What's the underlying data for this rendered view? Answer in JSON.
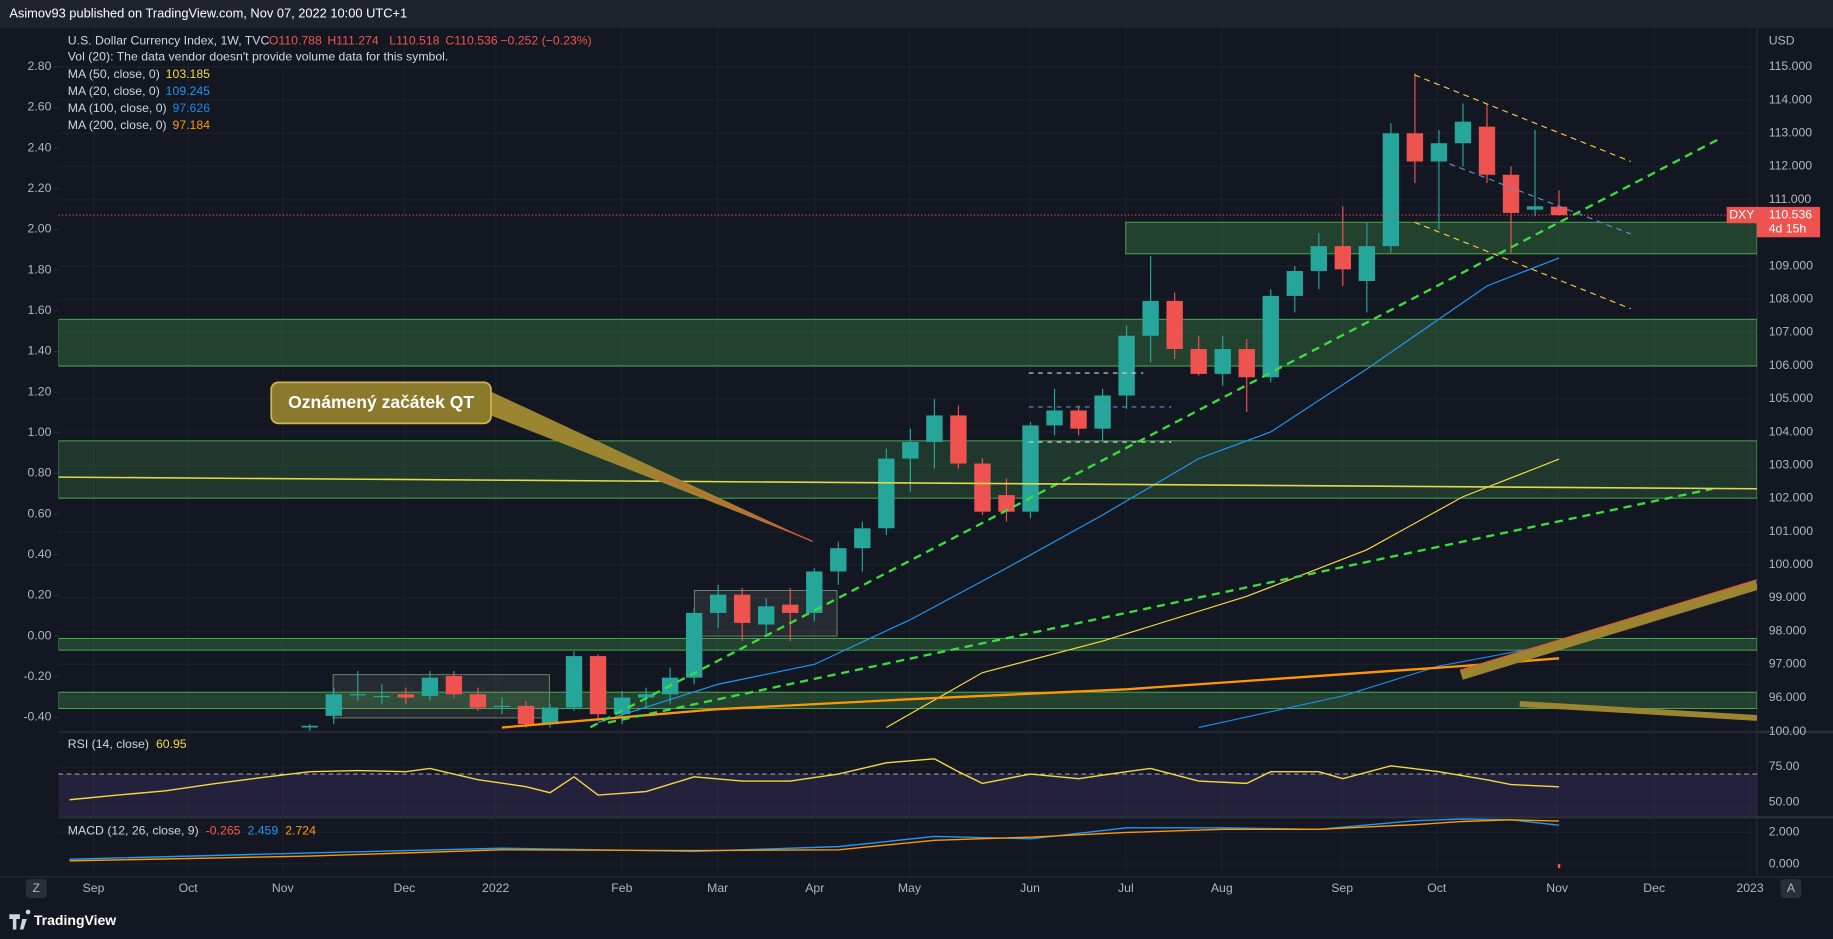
{
  "header": {
    "publisher": "Asimov93 published on TradingView.com, Nov 07, 2022 10:00 UTC+1"
  },
  "chart_data": [
    {
      "type": "candlestick",
      "title": "U.S. Dollar Currency Index, 1W, TVC",
      "ohlc_labels": [
        "O110.788",
        "H111.274",
        "L110.518",
        "C110.536",
        "−0.252 (−0.23%)"
      ],
      "subtitle": "Vol (20): The data vendor doesn't provide volume data for this symbol.",
      "symbol": "DXY",
      "countdown": "4d 15h",
      "currency": "USD",
      "annotation": "Oznámený začátek QT",
      "up_color": "#26a69a",
      "down_color": "#ef5350",
      "open": [
        95.1,
        95.45,
        96.1,
        96.05,
        96.1,
        96.05,
        96.65,
        96.1,
        95.75,
        95.75,
        95.2,
        95.7,
        97.25,
        95.5,
        96.0,
        96.1,
        96.6,
        98.55,
        99.1,
        98.2,
        98.8,
        98.55,
        99.8,
        100.5,
        101.1,
        103.2,
        103.7,
        104.5,
        103.05,
        102.1,
        101.6,
        104.2,
        104.65,
        104.1,
        105.1,
        106.9,
        107.95,
        106.5,
        105.75,
        106.5,
        105.65,
        108.1,
        108.85,
        109.6,
        108.55,
        109.6,
        113.0,
        112.15,
        112.7,
        113.2,
        111.75,
        110.7,
        110.788
      ],
      "high": [
        95.2,
        96.3,
        96.8,
        96.4,
        96.3,
        96.8,
        96.8,
        96.3,
        96.0,
        95.9,
        95.8,
        97.4,
        97.3,
        96.2,
        96.3,
        96.9,
        98.7,
        99.4,
        99.3,
        99.0,
        99.3,
        99.9,
        100.7,
        101.3,
        103.5,
        104.1,
        105.0,
        104.8,
        103.2,
        102.6,
        104.3,
        105.3,
        104.8,
        105.3,
        107.2,
        109.3,
        108.2,
        106.9,
        106.9,
        106.8,
        108.3,
        109.0,
        110.0,
        110.8,
        110.3,
        113.3,
        114.8,
        113.1,
        113.9,
        113.9,
        112.0,
        113.1,
        111.274
      ],
      "low": [
        95.0,
        95.2,
        95.9,
        95.8,
        95.8,
        95.9,
        96.0,
        95.6,
        95.5,
        95.1,
        95.1,
        95.6,
        95.3,
        95.2,
        95.7,
        95.8,
        96.4,
        98.1,
        97.7,
        97.9,
        97.7,
        98.3,
        99.4,
        99.8,
        100.9,
        102.2,
        102.9,
        102.9,
        101.5,
        101.3,
        101.4,
        103.9,
        103.9,
        103.7,
        104.7,
        106.1,
        106.2,
        105.7,
        105.4,
        104.6,
        105.5,
        107.6,
        108.3,
        108.4,
        107.6,
        109.4,
        111.5,
        110.1,
        112.0,
        111.5,
        109.4,
        110.5,
        110.518
      ],
      "close": [
        95.15,
        96.1,
        96.1,
        96.05,
        96.0,
        96.6,
        96.1,
        95.7,
        95.75,
        95.2,
        95.7,
        97.25,
        95.5,
        96.0,
        96.1,
        96.6,
        98.55,
        99.1,
        98.25,
        98.75,
        98.55,
        99.8,
        100.5,
        101.1,
        103.2,
        103.7,
        104.5,
        103.05,
        101.6,
        101.6,
        104.2,
        104.65,
        104.1,
        105.1,
        106.9,
        107.95,
        106.5,
        105.75,
        106.5,
        105.65,
        108.1,
        108.85,
        109.6,
        108.9,
        109.6,
        113.0,
        112.15,
        112.7,
        113.35,
        111.75,
        110.6,
        110.8,
        110.536
      ],
      "last_price": 110.536,
      "series": [
        {
          "name": "MA (50, close, 0)",
          "color": "#f5d742",
          "x": [
            24,
            28,
            33,
            39,
            44,
            48,
            52
          ],
          "values": [
            95.1,
            96.75,
            97.7,
            99.05,
            100.45,
            102.05,
            103.185
          ]
        },
        {
          "name": "MA (20, close, 0)",
          "color": "#2196f3",
          "x": [
            12,
            17,
            21,
            25,
            29,
            33,
            37,
            40,
            44,
            47,
            49,
            52
          ],
          "values": [
            95.25,
            96.4,
            97.0,
            98.35,
            99.9,
            101.5,
            103.2,
            104.0,
            105.9,
            107.4,
            108.4,
            109.245
          ]
        },
        {
          "name": "MA (100, close, 0)",
          "color": "#1e88e5",
          "x": [
            37,
            43,
            47,
            52
          ],
          "values": [
            95.1,
            96.05,
            96.95,
            97.626
          ]
        },
        {
          "name": "MA (200, close, 0)",
          "color": "#ff9800",
          "x": [
            8,
            17,
            25,
            34,
            42,
            48,
            52
          ],
          "values": [
            95.1,
            95.65,
            95.95,
            96.25,
            96.65,
            96.95,
            97.184
          ]
        }
      ],
      "xlim": [
        -10.46,
        60.24
      ],
      "xticks": [
        {
          "value": -9.0,
          "label": "Sep"
        },
        {
          "value": -5.06,
          "label": "Oct"
        },
        {
          "value": -1.12,
          "label": "Nov"
        },
        {
          "value": 3.94,
          "label": "Dec"
        },
        {
          "value": 7.74,
          "label": "2022"
        },
        {
          "value": 12.99,
          "label": "Feb"
        },
        {
          "value": 16.98,
          "label": "Mar"
        },
        {
          "value": 21.02,
          "label": "Apr"
        },
        {
          "value": 24.96,
          "label": "May"
        },
        {
          "value": 29.98,
          "label": "Jun"
        },
        {
          "value": 33.97,
          "label": "Jul"
        },
        {
          "value": 37.96,
          "label": "Aug"
        },
        {
          "value": 42.97,
          "label": "Sep"
        },
        {
          "value": 46.91,
          "label": "Oct"
        },
        {
          "value": 51.92,
          "label": "Nov"
        },
        {
          "value": 55.96,
          "label": "Dec"
        },
        {
          "value": 59.95,
          "label": "2023"
        }
      ],
      "ylim": [
        95.0,
        116.13
      ],
      "yticks": [
        {
          "value": 115,
          "label": "115.000"
        },
        {
          "value": 114,
          "label": "114.000"
        },
        {
          "value": 113,
          "label": "113.000"
        },
        {
          "value": 112,
          "label": "112.000"
        },
        {
          "value": 111,
          "label": "111.000"
        },
        {
          "value": 109,
          "label": "109.000"
        },
        {
          "value": 108,
          "label": "108.000"
        },
        {
          "value": 107,
          "label": "107.000"
        },
        {
          "value": 106,
          "label": "106.000"
        },
        {
          "value": 105,
          "label": "105.000"
        },
        {
          "value": 104,
          "label": "104.000"
        },
        {
          "value": 103,
          "label": "103.000"
        },
        {
          "value": 102,
          "label": "102.000"
        },
        {
          "value": 101,
          "label": "101.000"
        },
        {
          "value": 100,
          "label": "100.000"
        },
        {
          "value": 99,
          "label": "99.000"
        },
        {
          "value": 98,
          "label": "98.000"
        },
        {
          "value": 97,
          "label": "97.000"
        },
        {
          "value": 96,
          "label": "96.000"
        }
      ],
      "y2lim": [
        -0.466,
        2.984
      ],
      "y2ticks": [
        {
          "value": 2.8,
          "label": "2.80"
        },
        {
          "value": 2.6,
          "label": "2.60"
        },
        {
          "value": 2.4,
          "label": "2.40"
        },
        {
          "value": 2.2,
          "label": "2.20"
        },
        {
          "value": 2.0,
          "label": "2.00"
        },
        {
          "value": 1.8,
          "label": "1.80"
        },
        {
          "value": 1.6,
          "label": "1.60"
        },
        {
          "value": 1.4,
          "label": "1.40"
        },
        {
          "value": 1.2,
          "label": "1.20"
        },
        {
          "value": 1.0,
          "label": "1.00"
        },
        {
          "value": 0.8,
          "label": "0.80"
        },
        {
          "value": 0.6,
          "label": "0.60"
        },
        {
          "value": 0.4,
          "label": "0.40"
        },
        {
          "value": 0.2,
          "label": "0.20"
        },
        {
          "value": 0,
          "label": "0.00"
        },
        {
          "value": -0.2,
          "label": "-0.20"
        },
        {
          "value": -0.4,
          "label": "-0.40"
        }
      ],
      "grid": true
    },
    {
      "type": "line",
      "title": "RSI (14, close)",
      "series": [
        {
          "color": "#f5d742",
          "x": [
            -10,
            -8,
            -6,
            -4,
            -2,
            0,
            2,
            4,
            5,
            7,
            9,
            10,
            11,
            12,
            14,
            16,
            18,
            20,
            22,
            24,
            26,
            27,
            28,
            30,
            32,
            34,
            35,
            37,
            39,
            40,
            42,
            43,
            45,
            47,
            49,
            50,
            52
          ],
          "values": [
            51.7,
            55,
            58,
            63,
            67.5,
            71.7,
            72.5,
            71.7,
            74,
            66,
            61,
            56.7,
            68,
            55,
            57.5,
            68,
            65,
            65,
            70,
            78,
            80.8,
            71.7,
            63.3,
            70,
            66.7,
            71.7,
            74,
            65,
            63.3,
            71.7,
            71.7,
            66.7,
            75.8,
            71.7,
            65.8,
            62.5,
            60.95
          ]
        }
      ],
      "ylim": [
        40,
        100
      ],
      "yticks": [
        {
          "value": 100,
          "label": "100.00"
        },
        {
          "value": 75,
          "label": "75.00"
        },
        {
          "value": 50,
          "label": "50.00"
        }
      ]
    },
    {
      "type": "macd",
      "title": "MACD (12, 26, close, 9)",
      "series": [
        {
          "color": "#ff5252",
          "kind": "histogram",
          "x": [
            52
          ],
          "values": [
            -0.265
          ]
        },
        {
          "color": "#2196f3",
          "x": [
            -10,
            0,
            8,
            16,
            22,
            26,
            30,
            34,
            38,
            42,
            46,
            48,
            50,
            52
          ],
          "values": [
            0.3,
            0.7,
            1.0,
            0.8,
            1.1,
            1.75,
            1.6,
            2.3,
            2.3,
            2.2,
            2.75,
            2.85,
            2.8,
            2.459
          ]
        },
        {
          "color": "#ff9800",
          "x": [
            -10,
            0,
            8,
            16,
            22,
            26,
            30,
            34,
            38,
            42,
            46,
            48,
            50,
            52
          ],
          "values": [
            0.2,
            0.5,
            0.9,
            0.85,
            0.9,
            1.5,
            1.7,
            2.0,
            2.2,
            2.2,
            2.5,
            2.7,
            2.8,
            2.724
          ]
        }
      ],
      "ylim": [
        -0.667,
        2.889
      ],
      "yticks": [
        {
          "value": 2,
          "label": "2.000"
        },
        {
          "value": 0,
          "label": "0.000"
        }
      ]
    }
  ],
  "footer": {
    "brand": "TradingView",
    "left_button": "Z",
    "right_button": "A"
  }
}
